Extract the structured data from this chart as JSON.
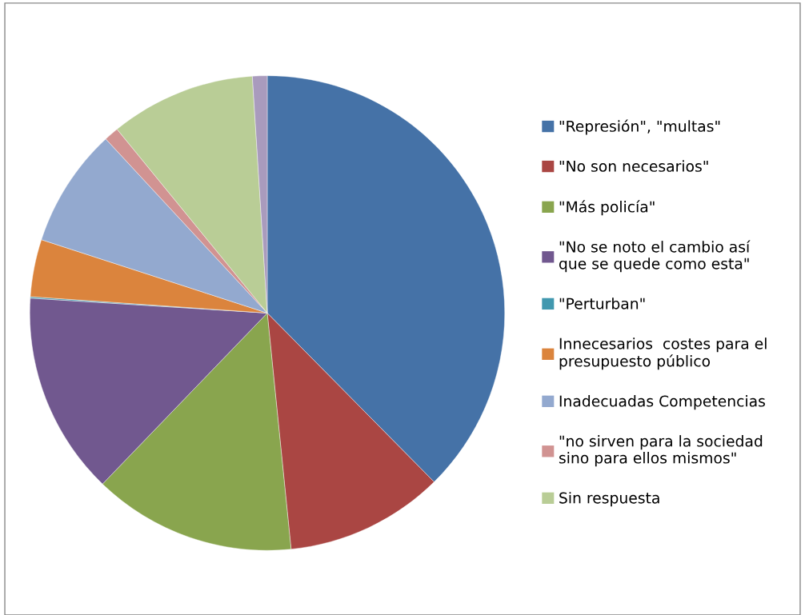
{
  "chart_data": {
    "type": "pie",
    "categories": [
      "\"Represión\", \"multas\"",
      "\"No son necesarios\"",
      "\"Más policía\"",
      "\"No se noto el cambio así\nque se quede como esta\"",
      "\"Perturban\"",
      "Innecesarios  costes para el\npresupuesto público",
      "Inadecuadas Competencias",
      "\"no sirven para la sociedad\nsino para ellos mismos\"",
      "Sin respuesta",
      null
    ],
    "values": [
      37.6,
      10.8,
      13.8,
      13.8,
      0.1,
      3.9,
      8.1,
      1.0,
      9.9,
      1.0
    ],
    "colors": [
      "#4572a7",
      "#aa4643",
      "#89a54e",
      "#71588f",
      "#4198af",
      "#db843d",
      "#93a9cf",
      "#d19392",
      "#b9cd96",
      "#a99bbd"
    ],
    "legend": "right"
  }
}
